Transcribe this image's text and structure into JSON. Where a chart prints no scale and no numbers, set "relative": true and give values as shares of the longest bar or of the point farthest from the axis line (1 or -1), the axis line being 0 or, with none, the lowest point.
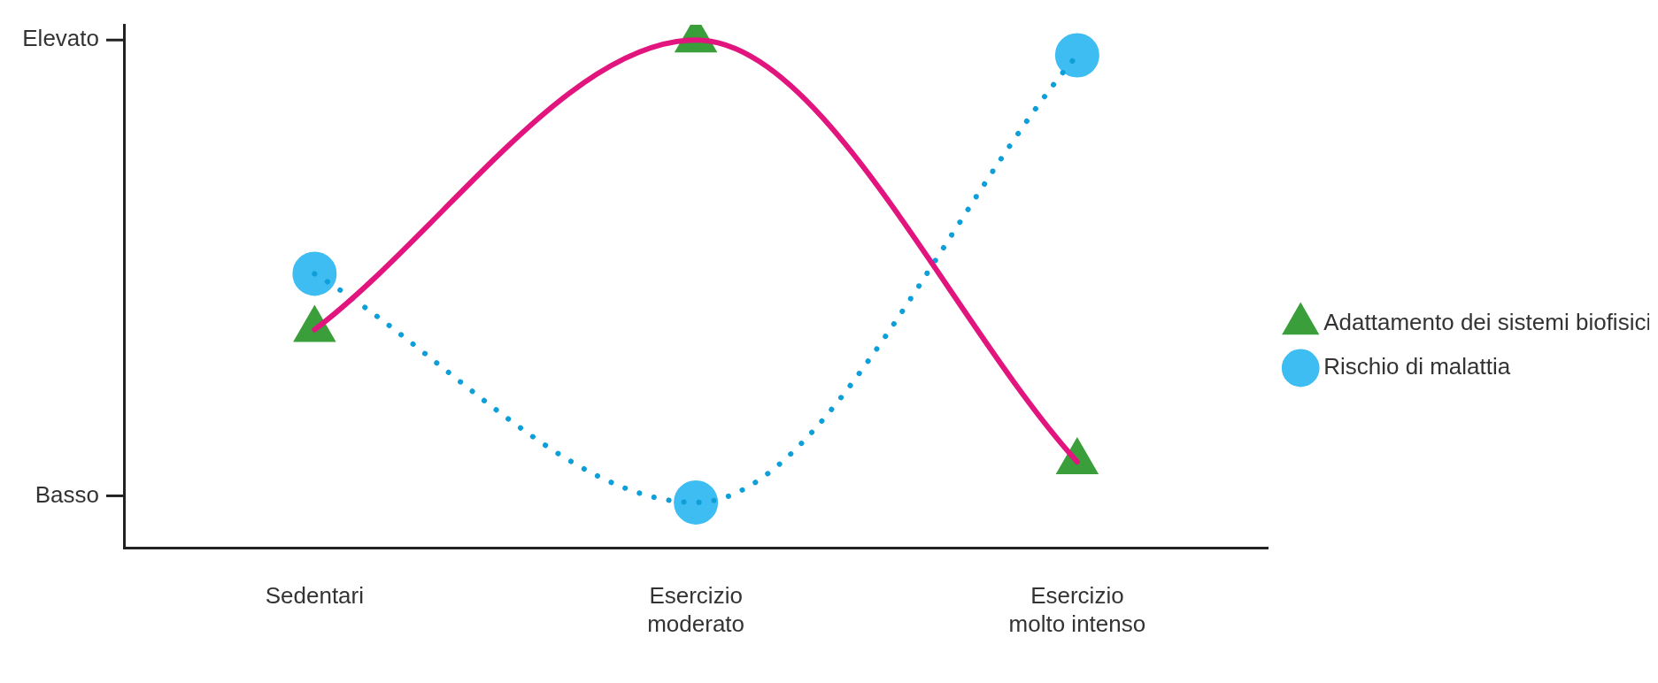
{
  "chart_data": {
    "type": "line",
    "categories": [
      "Sedentari",
      "Esercizio moderato",
      "Esercizio molto intenso"
    ],
    "relative": true,
    "grid": false,
    "legend": "right",
    "annotations": [
      "Elevato",
      "Basso"
    ],
    "series": [
      {
        "name": "Adattamento dei sistemi biofisici",
        "color": "#e2157f",
        "colors": [
          "#3a9e3a",
          "#3a9e3a",
          "#3a9e3a"
        ],
        "marker": "triangle",
        "line_style": "solid",
        "values": [
          0.43,
          1.0,
          0.17
        ]
      },
      {
        "name": "Rischio di malattia",
        "color": "#0f9fd8",
        "colors": [
          "#3dbdf2",
          "#3dbdf2",
          "#3dbdf2"
        ],
        "marker": "circle",
        "line_style": "dotted",
        "values": [
          0.54,
          0.09,
          0.97
        ]
      }
    ]
  }
}
